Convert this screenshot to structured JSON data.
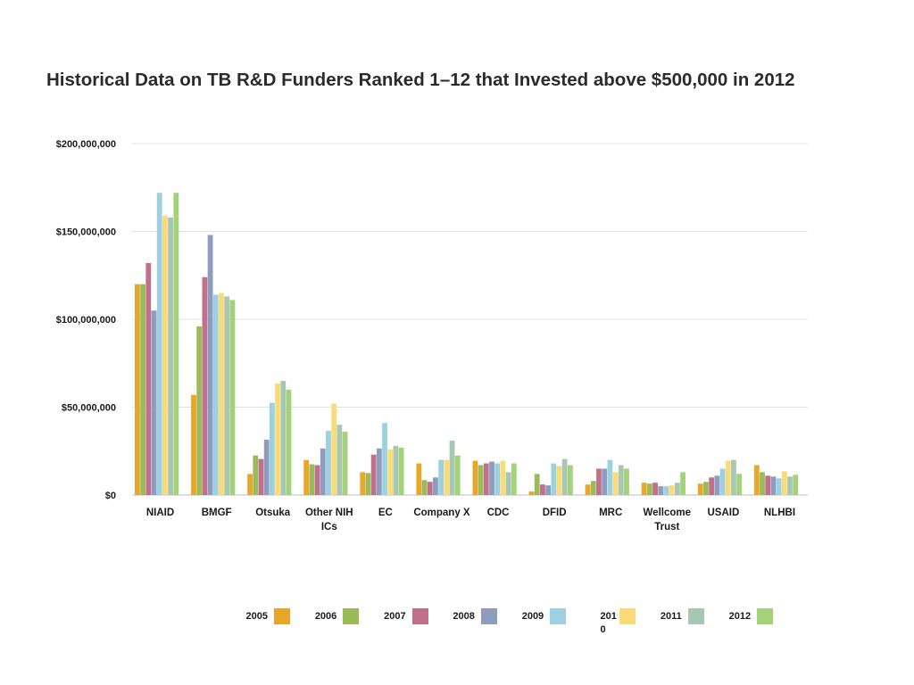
{
  "chart_data": {
    "type": "bar",
    "title": "Historical Data on TB R&D Funders Ranked 1–12 that Invested above $500,000 in 2012",
    "xlabel": "",
    "ylabel": "",
    "ylim": [
      0,
      200000000
    ],
    "grid": true,
    "legend_position": "bottom",
    "yticks": [
      {
        "value": 0,
        "label": "$0"
      },
      {
        "value": 50000000,
        "label": "$50,000,000"
      },
      {
        "value": 100000000,
        "label": "$100,000,000"
      },
      {
        "value": 150000000,
        "label": "$150,000,000"
      },
      {
        "value": 200000000,
        "label": "$200,000,000"
      }
    ],
    "categories": [
      "NIAID",
      "BMGF",
      "Otsuka",
      "Other NIH ICs",
      "EC",
      "Company X",
      "CDC",
      "DFID",
      "MRC",
      "Wellcome Trust",
      "USAID",
      "NLHBI"
    ],
    "series": [
      {
        "name": "2005",
        "color": "#E8A72B",
        "values": [
          120000000,
          57000000,
          12000000,
          20000000,
          13000000,
          18000000,
          19500000,
          2000000,
          6000000,
          7000000,
          6500000,
          17000000
        ]
      },
      {
        "name": "2006",
        "color": "#9BBB59",
        "values": [
          120000000,
          96000000,
          22500000,
          17500000,
          12500000,
          8500000,
          17000000,
          12000000,
          8000000,
          6500000,
          7500000,
          13000000
        ]
      },
      {
        "name": "2007",
        "color": "#C0708A",
        "values": [
          132000000,
          124000000,
          20500000,
          17000000,
          23000000,
          7500000,
          18000000,
          6000000,
          15000000,
          7000000,
          10000000,
          11000000
        ]
      },
      {
        "name": "2008",
        "color": "#8E9DBE",
        "values": [
          105000000,
          148000000,
          31500000,
          26500000,
          26500000,
          10000000,
          19000000,
          5500000,
          15000000,
          5000000,
          11000000,
          10500000
        ]
      },
      {
        "name": "2009",
        "color": "#9DD1E2",
        "values": [
          172000000,
          114000000,
          52500000,
          36500000,
          41000000,
          20000000,
          18000000,
          18000000,
          20000000,
          5000000,
          15000000,
          9500000
        ]
      },
      {
        "name": "2010",
        "label_lines": [
          "201",
          "0"
        ],
        "color": "#F9DB7A",
        "values": [
          159000000,
          115000000,
          63500000,
          52000000,
          26000000,
          20000000,
          19500000,
          16500000,
          13000000,
          5500000,
          19500000,
          13500000
        ]
      },
      {
        "name": "2011",
        "color": "#A8C7B2",
        "values": [
          158000000,
          113000000,
          65000000,
          40000000,
          28000000,
          31000000,
          13000000,
          20500000,
          17000000,
          7000000,
          20000000,
          10500000
        ]
      },
      {
        "name": "2012",
        "color": "#A3D27A",
        "values": [
          172000000,
          111000000,
          60000000,
          36000000,
          27000000,
          22500000,
          18000000,
          17000000,
          15000000,
          13000000,
          12000000,
          11500000
        ]
      }
    ]
  }
}
